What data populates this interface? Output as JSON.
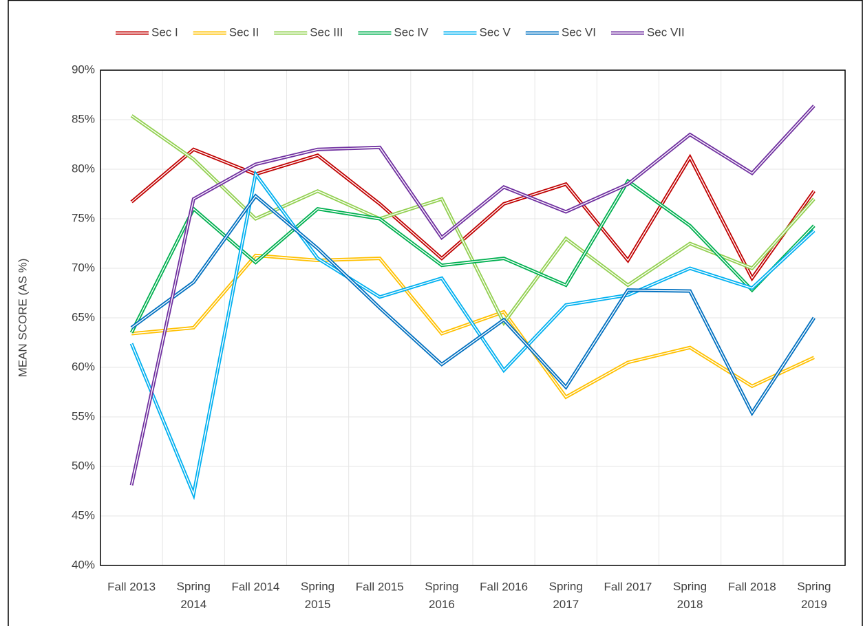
{
  "chart_data": {
    "type": "line",
    "ylabel": "MEAN SCORE (AS %)",
    "categories": [
      "Fall 2013",
      "Spring 2014",
      "Fall 2014",
      "Spring 2015",
      "Fall 2015",
      "Spring 2016",
      "Fall 2016",
      "Spring 2017",
      "Fall 2017",
      "Spring 2018",
      "Fall 2018",
      "Spring 2019"
    ],
    "series": [
      {
        "name": "Sec I",
        "color": "#c00000",
        "values": [
          76.7,
          82,
          79.5,
          81.4,
          76.5,
          71,
          76.5,
          78.5,
          70.8,
          81.2,
          69,
          77.8
        ]
      },
      {
        "name": "Sec II",
        "color": "#ffc000",
        "values": [
          63.4,
          64,
          71.3,
          70.8,
          71,
          63.4,
          65.6,
          57,
          60.5,
          62,
          58.1,
          61
        ]
      },
      {
        "name": "Sec III",
        "color": "#92d050",
        "values": [
          85.4,
          81,
          75,
          77.8,
          75,
          77,
          64.5,
          73,
          68.3,
          72.5,
          70,
          77
        ]
      },
      {
        "name": "Sec IV",
        "color": "#00b050",
        "values": [
          63.5,
          76,
          70.6,
          76,
          75,
          70.3,
          71,
          68.3,
          78.8,
          74.3,
          67.8,
          74.3
        ]
      },
      {
        "name": "Sec V",
        "color": "#00b0f0",
        "values": [
          62.4,
          47.2,
          79.5,
          71,
          67.1,
          69,
          59.7,
          66.3,
          67.3,
          70,
          68,
          73.8
        ]
      },
      {
        "name": "Sec VI",
        "color": "#0070c0",
        "values": [
          64,
          68.6,
          77.3,
          72,
          66,
          60.3,
          64.8,
          58,
          67.8,
          67.7,
          55.4,
          65
        ]
      },
      {
        "name": "Sec VII",
        "color": "#7030a0",
        "values": [
          48.1,
          77,
          80.5,
          82,
          82.2,
          73.1,
          78.2,
          75.7,
          78.5,
          83.5,
          79.6,
          86.4
        ]
      }
    ],
    "ylim": [
      40,
      90
    ],
    "yticks": [
      {
        "value": 40,
        "label": "40%"
      },
      {
        "value": 45,
        "label": "45%"
      },
      {
        "value": 50,
        "label": "50%"
      },
      {
        "value": 55,
        "label": "55%"
      },
      {
        "value": 60,
        "label": "60%"
      },
      {
        "value": 65,
        "label": "65%"
      },
      {
        "value": 70,
        "label": "70%"
      },
      {
        "value": 75,
        "label": "75%"
      },
      {
        "value": 80,
        "label": "80%"
      },
      {
        "value": 85,
        "label": "85%"
      },
      {
        "value": 90,
        "label": "90%"
      }
    ],
    "grid": true,
    "legend": "top"
  }
}
